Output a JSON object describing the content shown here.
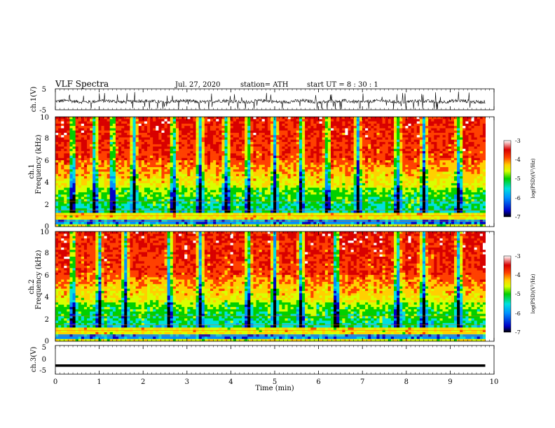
{
  "header": {
    "title": "VLF  Spectra",
    "date": "Jul.  27,  2020",
    "station": "station= ATH",
    "start_ut": "start  UT  =    8  : 30 : 1"
  },
  "colors": {
    "background": "#ffffff",
    "trace": "#000000",
    "spectrogram_base": "#e8d000",
    "colormap": [
      "#000000",
      "#0000c8",
      "#0090ff",
      "#00e0e0",
      "#00d000",
      "#d8ff00",
      "#ffd000",
      "#ff4000",
      "#d80000",
      "#ffffff"
    ]
  },
  "chart_data": [
    {
      "type": "line",
      "panel": "ch1-waveform",
      "ylabel": "ch.1(V)",
      "ylim": [
        -5,
        5
      ],
      "yticks": [
        "5",
        "-5"
      ],
      "xlim": [
        0,
        10
      ],
      "description_values": {
        "baseline": -1.0,
        "typical_range": [
          -3.0,
          0.5
        ]
      }
    },
    {
      "type": "heatmap",
      "panel": "ch1-spectrogram",
      "ylabel_channel": "ch.1",
      "ylabel": "Frequency  (kHz)",
      "ylim": [
        0,
        10
      ],
      "yticks": [
        "0",
        "2",
        "4",
        "6",
        "8",
        "10"
      ],
      "xlim": [
        0,
        10
      ],
      "data_end_min": 9.8,
      "colorbar": {
        "label": "log(PSD)(V²/Hz)",
        "range": [
          -7,
          -3
        ],
        "ticks": [
          "-3",
          "-4",
          "-5",
          "-6",
          "-7"
        ]
      },
      "dark_stripes_min": [
        0.4,
        0.9,
        1.3,
        1.8,
        2.7,
        3.3,
        3.9,
        4.4,
        5.0,
        5.6,
        6.2,
        6.9,
        7.8,
        8.4,
        9.2
      ]
    },
    {
      "type": "heatmap",
      "panel": "ch2-spectrogram",
      "ylabel_channel": "ch.2",
      "ylabel": "Frequency  (kHz)",
      "ylim": [
        0,
        10
      ],
      "yticks": [
        "0",
        "2",
        "4",
        "6",
        "8",
        "10"
      ],
      "xlim": [
        0,
        10
      ],
      "data_end_min": 9.8,
      "colorbar": {
        "label": "log(PSD)(V²/Hz)",
        "range": [
          -7,
          -3
        ],
        "ticks": [
          "-3",
          "-4",
          "-5",
          "-6",
          "-7"
        ]
      },
      "dark_stripes_min": [
        0.4,
        1.0,
        1.6,
        2.6,
        3.3,
        4.4,
        5.0,
        5.6,
        6.4,
        7.8,
        8.4,
        9.2
      ]
    },
    {
      "type": "line",
      "panel": "ch3-waveform",
      "ylabel": "ch.3(V)",
      "ylim": [
        -5,
        5
      ],
      "yticks": [
        "5",
        "0",
        "-5"
      ],
      "xlim": [
        0,
        10
      ],
      "xticks": [
        "0",
        "1",
        "2",
        "3",
        "4",
        "5",
        "6",
        "7",
        "8",
        "9",
        "10"
      ],
      "xlabel": "Time  (min)",
      "description_values": {
        "baseline": -2.0
      }
    }
  ]
}
